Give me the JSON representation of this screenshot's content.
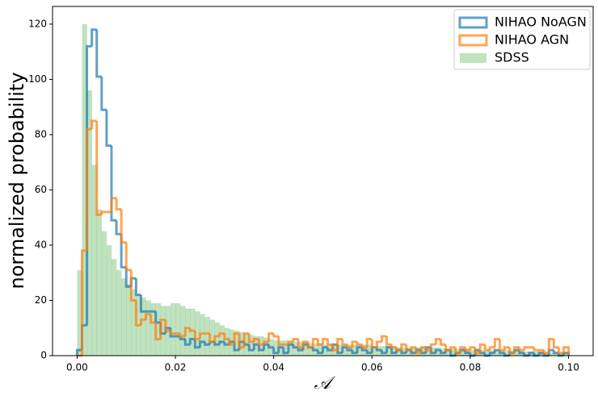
{
  "chart_data": {
    "type": "histogram",
    "xlabel": "𝒜",
    "ylabel": "normalized probability",
    "bins": [
      0,
      0.001,
      0.002,
      0.003,
      0.004,
      0.005,
      0.006,
      0.007,
      0.008,
      0.009,
      0.01,
      0.011,
      0.012,
      0.013,
      0.014,
      0.015,
      0.016,
      0.017,
      0.018,
      0.019,
      0.02,
      0.021,
      0.022,
      0.023,
      0.024,
      0.025,
      0.026,
      0.027,
      0.028,
      0.029,
      0.03,
      0.031,
      0.032,
      0.033,
      0.034,
      0.035,
      0.036,
      0.037,
      0.038,
      0.039,
      0.04,
      0.041,
      0.042,
      0.043,
      0.044,
      0.045,
      0.046,
      0.047,
      0.048,
      0.049,
      0.05,
      0.051,
      0.052,
      0.053,
      0.054,
      0.055,
      0.056,
      0.057,
      0.058,
      0.059,
      0.06,
      0.061,
      0.062,
      0.063,
      0.064,
      0.065,
      0.066,
      0.067,
      0.068,
      0.069,
      0.07,
      0.071,
      0.072,
      0.073,
      0.074,
      0.075,
      0.076,
      0.077,
      0.078,
      0.079,
      0.08,
      0.081,
      0.082,
      0.083,
      0.084,
      0.085,
      0.086,
      0.087,
      0.088,
      0.089,
      0.09,
      0.091,
      0.092,
      0.093,
      0.094,
      0.095,
      0.096,
      0.097,
      0.098,
      0.099,
      0.1
    ],
    "series": [
      {
        "name": "NIHAO NoAGN",
        "color": "#1f77b4",
        "alpha": 0.7,
        "histtype": "step",
        "values": [
          2,
          11,
          112,
          118,
          101,
          89,
          76,
          49,
          44,
          32,
          25,
          28,
          22,
          16,
          16,
          16,
          12,
          8,
          10,
          7,
          7,
          6,
          4,
          6,
          3,
          5,
          4,
          5,
          4,
          5,
          4,
          5,
          2,
          5,
          4,
          2,
          4,
          2,
          4,
          3,
          1,
          3,
          1,
          4,
          3,
          2,
          4,
          3,
          2,
          1,
          3,
          2,
          4,
          1,
          3,
          2,
          1,
          3,
          2,
          1,
          3,
          2,
          1,
          3,
          1,
          2,
          1,
          2,
          1,
          2,
          1,
          3,
          1,
          2,
          1,
          2,
          0,
          1,
          2,
          1,
          0,
          2,
          1,
          0,
          1,
          2,
          1,
          0,
          1,
          2,
          1,
          0,
          1,
          0,
          1,
          0,
          2,
          1,
          0,
          1
        ]
      },
      {
        "name": "NIHAO AGN",
        "color": "#ff7f0e",
        "alpha": 0.7,
        "histtype": "step",
        "values": [
          0,
          38,
          82,
          85,
          51,
          52,
          52,
          57,
          53,
          41,
          31,
          20,
          11,
          13,
          15,
          12,
          6,
          13,
          9,
          8,
          8,
          7,
          10,
          9,
          6,
          8,
          8,
          5,
          7,
          8,
          6,
          4,
          8,
          3,
          8,
          5,
          6,
          4,
          5,
          8,
          7,
          4,
          4,
          5,
          6,
          3,
          5,
          3,
          6,
          4,
          6,
          4,
          2,
          6,
          4,
          3,
          5,
          4,
          3,
          6,
          3,
          5,
          7,
          4,
          3,
          2,
          4,
          2,
          3,
          1,
          3,
          2,
          4,
          6,
          4,
          2,
          3,
          1,
          3,
          2,
          3,
          1,
          4,
          2,
          3,
          6,
          2,
          3,
          1,
          3,
          2,
          3,
          3,
          2,
          2,
          1,
          6,
          3,
          1,
          3
        ]
      },
      {
        "name": "SDSS",
        "color": "#2ca02c",
        "alpha": 0.3,
        "histtype": "bar",
        "values": [
          31,
          120,
          96,
          69,
          53,
          45,
          40,
          35,
          31,
          28,
          26,
          24,
          22,
          21,
          20,
          19,
          19,
          18,
          18,
          19,
          19,
          18,
          17,
          17,
          16,
          15,
          14,
          13,
          12,
          11,
          10,
          9.5,
          9,
          8.5,
          8,
          7.5,
          7,
          7,
          6.5,
          6,
          5.5,
          5.5,
          5.5,
          5,
          5,
          5,
          5,
          4.5,
          4.5,
          4.5,
          4,
          4,
          4,
          4,
          4,
          4,
          4,
          4,
          4,
          4,
          3.5,
          3.5,
          3.5,
          3.5,
          3.5,
          3,
          3,
          3,
          3,
          3,
          3,
          3,
          3,
          3,
          2.5,
          2.5,
          2.5,
          2.5,
          2.5,
          2.5,
          2,
          2,
          2,
          2,
          2,
          2,
          2,
          2,
          2,
          2,
          1.5,
          1.5,
          1.5,
          1.5,
          1.5,
          1,
          1,
          1,
          1,
          1
        ]
      }
    ],
    "xlim": [
      -0.005,
      0.105
    ],
    "xticks": [
      {
        "value": 0,
        "label": "0.00"
      },
      {
        "value": 0.02,
        "label": "0.02"
      },
      {
        "value": 0.04,
        "label": "0.04"
      },
      {
        "value": 0.06,
        "label": "0.06"
      },
      {
        "value": 0.08,
        "label": "0.08"
      },
      {
        "value": 0.1,
        "label": "0.10"
      }
    ],
    "ylim": [
      0,
      126.4
    ],
    "yticks": [
      0,
      20,
      40,
      60,
      80,
      100,
      120
    ],
    "grid": false,
    "legend": "upper right"
  }
}
